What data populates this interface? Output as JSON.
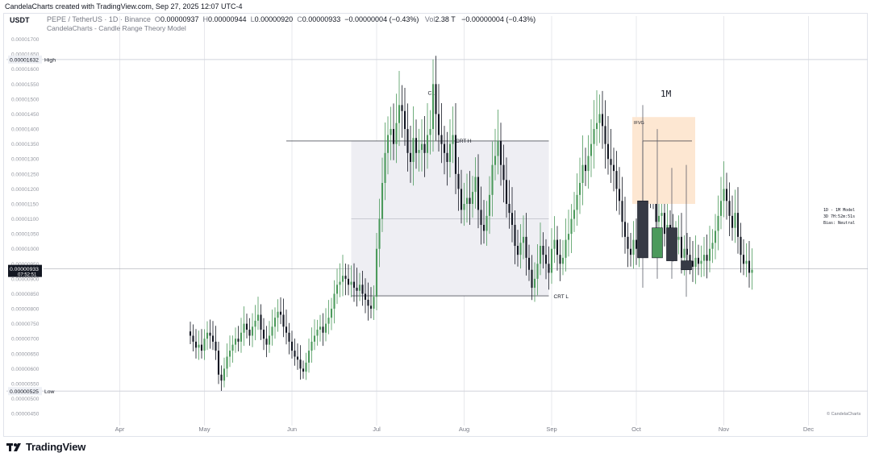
{
  "caption": "CandelaCharts created with TradingView.com, Sep 27, 2025 12:07 UTC-4",
  "currency": "USDT",
  "legend": {
    "symbol": "PEPE / TetherUS · 1D · Binance",
    "o_label": "O",
    "o": "0.00000937",
    "h_label": "H",
    "h": "0.00000944",
    "l_label": "L",
    "l": "0.00000920",
    "c_label": "C",
    "c": "0.00000933",
    "change": "−0.00000004 (−0.43%)",
    "vol_label": "Vol",
    "vol": "2.38 T",
    "vol_change": "−0.00000004 (−0.43%)"
  },
  "indicator": "CandelaCharts - Candle Range Theory Model",
  "colors": {
    "up": "#4c9a5c",
    "down": "#131722",
    "crt_box": "#eeeef3",
    "fvg": "#fde7d2"
  },
  "chart_data": {
    "type": "candlestick",
    "title": "PEPE / TetherUS · 1D · Binance",
    "ylim": [
      4.1e-06,
      1.75e-05
    ],
    "y_ticks": [
      "0.00000450",
      "0.00000500",
      "0.00000550",
      "0.00000600",
      "0.00000650",
      "0.00000700",
      "0.00000750",
      "0.00000800",
      "0.00000850",
      "0.00000900",
      "0.00000950",
      "0.00001000",
      "0.00001050",
      "0.00001100",
      "0.00001150",
      "0.00001200",
      "0.00001250",
      "0.00001300",
      "0.00001350",
      "0.00001400",
      "0.00001450",
      "0.00001500",
      "0.00001550",
      "0.00001600",
      "0.00001650",
      "0.00001700"
    ],
    "x_labels": [
      "Apr",
      "May",
      "Jun",
      "Jul",
      "Aug",
      "Sep",
      "Oct",
      "Nov",
      "Dec"
    ],
    "x_label_days": [
      31,
      61,
      92,
      122,
      153,
      184,
      214,
      245,
      275
    ],
    "x_first_day": 4,
    "x_last_day": 296,
    "price_labels": [
      {
        "text": "0.00001632",
        "tag": "High",
        "value": 1.632e-05
      },
      {
        "text": "0.00000525",
        "tag": "Low",
        "value": 5.25e-06
      },
      {
        "text": "0.00000933",
        "tag": "07:52:51",
        "value": 9.33e-06
      }
    ],
    "daily_closes": [
      7.1e-06,
      6.9e-06,
      6.7e-06,
      6.8e-06,
      6.6e-06,
      7e-06,
      7.2e-06,
      7.1e-06,
      6.9e-06,
      6.6e-06,
      5.8e-06,
      5.6e-06,
      6e-06,
      6.4e-06,
      6.6e-06,
      6.8e-06,
      7e-06,
      6.9e-06,
      7.2e-06,
      7.5e-06,
      7.3e-06,
      7.1e-06,
      7.4e-06,
      7.6e-06,
      7.8e-06,
      7.3e-06,
      7e-06,
      6.8e-06,
      7.1e-06,
      7.4e-06,
      7.7e-06,
      7.9e-06,
      7.8e-06,
      7.4e-06,
      7.2e-06,
      6.9e-06,
      6.6e-06,
      6.4e-06,
      6.3e-06,
      6e-06,
      5.9e-06,
      6.2e-06,
      6.6e-06,
      6.9e-06,
      7.1e-06,
      7.3e-06,
      7.4e-06,
      7.2e-06,
      7.5e-06,
      7.7e-06,
      8e-06,
      8.5e-06,
      8.8e-06,
      8.9e-06,
      9.1e-06,
      9e-06,
      8.8e-06,
      8.9e-06,
      8.7e-06,
      8.6e-06,
      8.8e-06,
      8.5e-06,
      8.3e-06,
      8.1e-06,
      8e-06,
      8.4e-06,
      1e-05,
      1.1e-05,
      1.22e-05,
      1.32e-05,
      1.38e-05,
      1.4e-05,
      1.35e-05,
      1.42e-05,
      1.48e-05,
      1.46e-05,
      1.4e-05,
      1.32e-05,
      1.29e-05,
      1.37e-05,
      1.32e-05,
      1.33e-05,
      1.35e-05,
      1.32e-05,
      1.38e-05,
      1.4e-05,
      1.55e-05,
      1.45e-05,
      1.38e-05,
      1.35e-05,
      1.32e-05,
      1.29e-05,
      1.35e-05,
      1.38e-05,
      1.25e-05,
      1.2e-05,
      1.13e-05,
      1.15e-05,
      1.17e-05,
      1.15e-05,
      1.19e-05,
      1.24e-05,
      1.13e-05,
      1.08e-05,
      1.06e-05,
      1.11e-05,
      1.18e-05,
      1.28e-05,
      1.31e-05,
      1.36e-05,
      1.28e-05,
      1.23e-05,
      1.15e-05,
      1.12e-05,
      1.08e-05,
      1.01e-05,
      9.8e-06,
      1.02e-05,
      1.04e-05,
      9.7e-06,
      9.3e-06,
      8.7e-06,
      9e-06,
      9.5e-06,
      1.01e-05,
      9.8e-06,
      9.5e-06,
      9.2e-06,
      1e-05,
      1.03e-05,
      9.8e-06,
      9.5e-06,
      9.7e-06,
      1.03e-05,
      1.05e-05,
      1.1e-05,
      1.13e-05,
      1.18e-05,
      1.22e-05,
      1.28e-05,
      1.26e-05,
      1.31e-05,
      1.35e-05,
      1.4e-05,
      1.42e-05,
      1.45e-05,
      1.41e-05,
      1.35e-05,
      1.3e-05,
      1.28e-05,
      1.26e-05,
      1.2e-05,
      1.16e-05,
      1.09e-05,
      1.04e-05,
      1e-05,
      9.8e-06,
      1.03e-05,
      1e-05,
      1.06e-05,
      1.11e-05,
      1.18e-05,
      1.25e-05,
      1.21e-05,
      1.18e-05,
      1.09e-05,
      1.11e-05,
      1.12e-05,
      1.05e-05,
      1.08e-05,
      1.06e-05,
      1.02e-05,
      1.03e-05,
      1.04e-05,
      9.7e-06,
      1e-05,
      9.8e-06,
      9.6e-06,
      9.4e-06,
      9.7e-06,
      9.5e-06,
      9.6e-06,
      9.8e-06,
      9.6e-06,
      1e-05,
      1.02e-05,
      1.06e-05,
      1.11e-05,
      1.16e-05,
      1.2e-05,
      1.16e-05,
      1.11e-05,
      1.07e-05,
      1.12e-05,
      1.04e-05,
      9.8e-06,
      9.5e-06,
      9.6e-06,
      9.2e-06,
      9.3e-06
    ],
    "crt": {
      "box_start_day": 113,
      "box_end_day": 183,
      "high": 1.36e-05,
      "low": 8.43e-06,
      "mid": 1.1e-05,
      "c1_day": 141,
      "c1_value": 1.482e-05,
      "labels": {
        "c1": "C1",
        "crt_h": "CRT H",
        "crt_l": "CRT L"
      }
    },
    "model_1m": {
      "title": "1M",
      "fvg_label": "IFVG",
      "fvg_top": 1.44e-05,
      "fvg_bottom": 1.15e-05,
      "candles": [
        {
          "o": 1.16e-05,
          "h": 1.48e-05,
          "l": 8.7e-06,
          "c": 9.7e-06
        },
        {
          "o": 9.7e-06,
          "h": 1.4e-05,
          "l": 9e-06,
          "c": 1.07e-05
        },
        {
          "o": 1.07e-05,
          "h": 1.27e-05,
          "l": 9e-06,
          "c": 9.6e-06
        },
        {
          "o": 9.6e-06,
          "h": 1.28e-05,
          "l": 8.4e-06,
          "c": 9.3e-06
        }
      ],
      "info": [
        "1D - 1M Model",
        "3D 7H:52m:51s",
        "Bias: Neutral"
      ]
    },
    "watermark": "© CandelaCharts"
  },
  "footer": {
    "brand": "TradingView"
  }
}
